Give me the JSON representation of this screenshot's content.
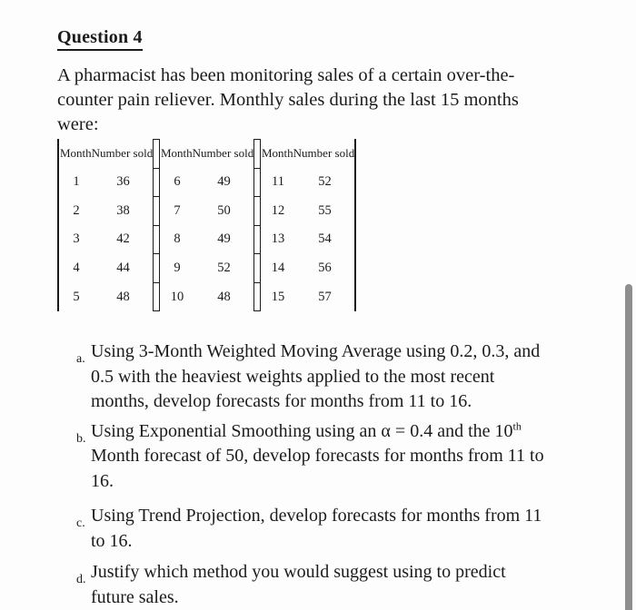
{
  "title": "Question 4",
  "intro": {
    "lines": [
      "A pharmacist has been monitoring sales of a certain over-the-",
      "counter pain reliever. Monthly sales during the last 15 months",
      "were:"
    ]
  },
  "table": {
    "header": {
      "month": "Month",
      "sold": "Number sold"
    },
    "groups": [
      {
        "rows": [
          {
            "month": "1",
            "sold": "36"
          },
          {
            "month": "2",
            "sold": "38"
          },
          {
            "month": "3",
            "sold": "42"
          },
          {
            "month": "4",
            "sold": "44"
          },
          {
            "month": "5",
            "sold": "48"
          }
        ]
      },
      {
        "rows": [
          {
            "month": "6",
            "sold": "49"
          },
          {
            "month": "7",
            "sold": "50"
          },
          {
            "month": "8",
            "sold": "49"
          },
          {
            "month": "9",
            "sold": "52"
          },
          {
            "month": "10",
            "sold": "48"
          }
        ]
      },
      {
        "rows": [
          {
            "month": "11",
            "sold": "52"
          },
          {
            "month": "12",
            "sold": "55"
          },
          {
            "month": "13",
            "sold": "54"
          },
          {
            "month": "14",
            "sold": "56"
          },
          {
            "month": "15",
            "sold": "57"
          }
        ]
      }
    ]
  },
  "questions": [
    {
      "marker": "a.",
      "lines": [
        "Using 3-Month Weighted Moving Average using 0.2, 0.3, and",
        "0.5 with the heaviest weights applied to the most recent",
        "months, develop forecasts for months from 11 to 16."
      ]
    },
    {
      "marker": "b.",
      "line1_pre": "Using Exponential Smoothing using an α = 0.4 and the 10",
      "line1_sup": "th",
      "lines": [
        "Month forecast of 50, develop forecasts for months from 11 to",
        "16."
      ]
    },
    {
      "marker": "c.",
      "lines": [
        "Using Trend Projection, develop forecasts for months from 11",
        "to 16."
      ]
    },
    {
      "marker": "d.",
      "lines": [
        "Justify which method you would suggest using to predict",
        "future sales."
      ]
    }
  ],
  "colors": {
    "text": "#1b1b1b",
    "table_line": "#1b1b1b",
    "scrollbar": "#8e8e8e"
  }
}
